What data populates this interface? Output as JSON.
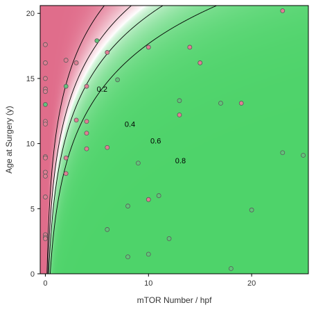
{
  "chart_data": {
    "type": "scatter",
    "title": "",
    "xlabel": "mTOR Number / hpf",
    "ylabel": "Age at Surgery (y)",
    "xlim": [
      -0.5,
      25.5
    ],
    "ylim": [
      0,
      20.6
    ],
    "x_ticks": [
      {
        "value": 0,
        "label": "0"
      },
      {
        "value": 10,
        "label": "10"
      },
      {
        "value": 20,
        "label": "20"
      }
    ],
    "y_ticks": [
      {
        "value": 0,
        "label": "0"
      },
      {
        "value": 5,
        "label": "5"
      },
      {
        "value": 10,
        "label": "10"
      },
      {
        "value": 15,
        "label": "15"
      },
      {
        "value": 20,
        "label": "20"
      }
    ],
    "background": {
      "type": "probability-surface",
      "low_color": "#e06d8b",
      "mid_color": "#ffffff",
      "high_color": "#4ed36a"
    },
    "contours": [
      {
        "level": 0.2,
        "label": "0.2",
        "label_at": [
          5.5,
          14.1
        ]
      },
      {
        "level": 0.4,
        "label": "0.4",
        "label_at": [
          8.2,
          11.4
        ]
      },
      {
        "level": 0.6,
        "label": "0.6",
        "label_at": [
          10.7,
          10.1
        ]
      },
      {
        "level": 0.8,
        "label": "0.8",
        "label_at": [
          13.1,
          8.6
        ]
      }
    ],
    "point_colors": {
      "pink": "#e07e94",
      "green": "#62c37a"
    },
    "points": [
      {
        "x": 0,
        "y": 17.6,
        "class": "pink"
      },
      {
        "x": 0,
        "y": 16.2,
        "class": "pink"
      },
      {
        "x": 0,
        "y": 15.0,
        "class": "pink"
      },
      {
        "x": 0,
        "y": 14.2,
        "class": "pink"
      },
      {
        "x": 0,
        "y": 14.0,
        "class": "pink"
      },
      {
        "x": 0,
        "y": 13.0,
        "class": "green"
      },
      {
        "x": 0,
        "y": 11.7,
        "class": "pink"
      },
      {
        "x": 0,
        "y": 11.5,
        "class": "pink"
      },
      {
        "x": 0,
        "y": 9.0,
        "class": "pink"
      },
      {
        "x": 0,
        "y": 8.9,
        "class": "pink"
      },
      {
        "x": 0,
        "y": 7.8,
        "class": "pink"
      },
      {
        "x": 0,
        "y": 7.5,
        "class": "pink"
      },
      {
        "x": 0,
        "y": 5.9,
        "class": "pink"
      },
      {
        "x": 0,
        "y": 3.0,
        "class": "pink"
      },
      {
        "x": 0,
        "y": 2.8,
        "class": "pink"
      },
      {
        "x": 0,
        "y": 2.7,
        "class": "pink"
      },
      {
        "x": 2,
        "y": 16.4,
        "class": "pink"
      },
      {
        "x": 2,
        "y": 14.4,
        "class": "green"
      },
      {
        "x": 2,
        "y": 8.9,
        "class": "pink"
      },
      {
        "x": 2,
        "y": 7.7,
        "class": "pink"
      },
      {
        "x": 3,
        "y": 16.2,
        "class": "pink"
      },
      {
        "x": 3,
        "y": 11.8,
        "class": "pink"
      },
      {
        "x": 4,
        "y": 14.4,
        "class": "pink"
      },
      {
        "x": 4,
        "y": 11.7,
        "class": "pink"
      },
      {
        "x": 4,
        "y": 10.8,
        "class": "pink"
      },
      {
        "x": 4,
        "y": 9.6,
        "class": "pink"
      },
      {
        "x": 5,
        "y": 17.9,
        "class": "green"
      },
      {
        "x": 6,
        "y": 17.0,
        "class": "pink"
      },
      {
        "x": 6,
        "y": 9.7,
        "class": "pink"
      },
      {
        "x": 6,
        "y": 3.4,
        "class": "green"
      },
      {
        "x": 7,
        "y": 14.9,
        "class": "green"
      },
      {
        "x": 8,
        "y": 5.2,
        "class": "green"
      },
      {
        "x": 8,
        "y": 1.3,
        "class": "green"
      },
      {
        "x": 9,
        "y": 8.5,
        "class": "green"
      },
      {
        "x": 10,
        "y": 17.4,
        "class": "pink"
      },
      {
        "x": 10,
        "y": 5.7,
        "class": "pink"
      },
      {
        "x": 10,
        "y": 1.5,
        "class": "green"
      },
      {
        "x": 11,
        "y": 6.0,
        "class": "green"
      },
      {
        "x": 12,
        "y": 2.7,
        "class": "green"
      },
      {
        "x": 13,
        "y": 13.3,
        "class": "green"
      },
      {
        "x": 13,
        "y": 12.2,
        "class": "pink"
      },
      {
        "x": 14,
        "y": 17.4,
        "class": "pink"
      },
      {
        "x": 15,
        "y": 16.2,
        "class": "pink"
      },
      {
        "x": 17,
        "y": 13.1,
        "class": "green"
      },
      {
        "x": 18,
        "y": 0.4,
        "class": "green"
      },
      {
        "x": 19,
        "y": 13.1,
        "class": "pink"
      },
      {
        "x": 20,
        "y": 4.9,
        "class": "green"
      },
      {
        "x": 23,
        "y": 20.2,
        "class": "pink"
      },
      {
        "x": 23,
        "y": 9.3,
        "class": "green"
      },
      {
        "x": 25,
        "y": 9.1,
        "class": "green"
      }
    ]
  }
}
